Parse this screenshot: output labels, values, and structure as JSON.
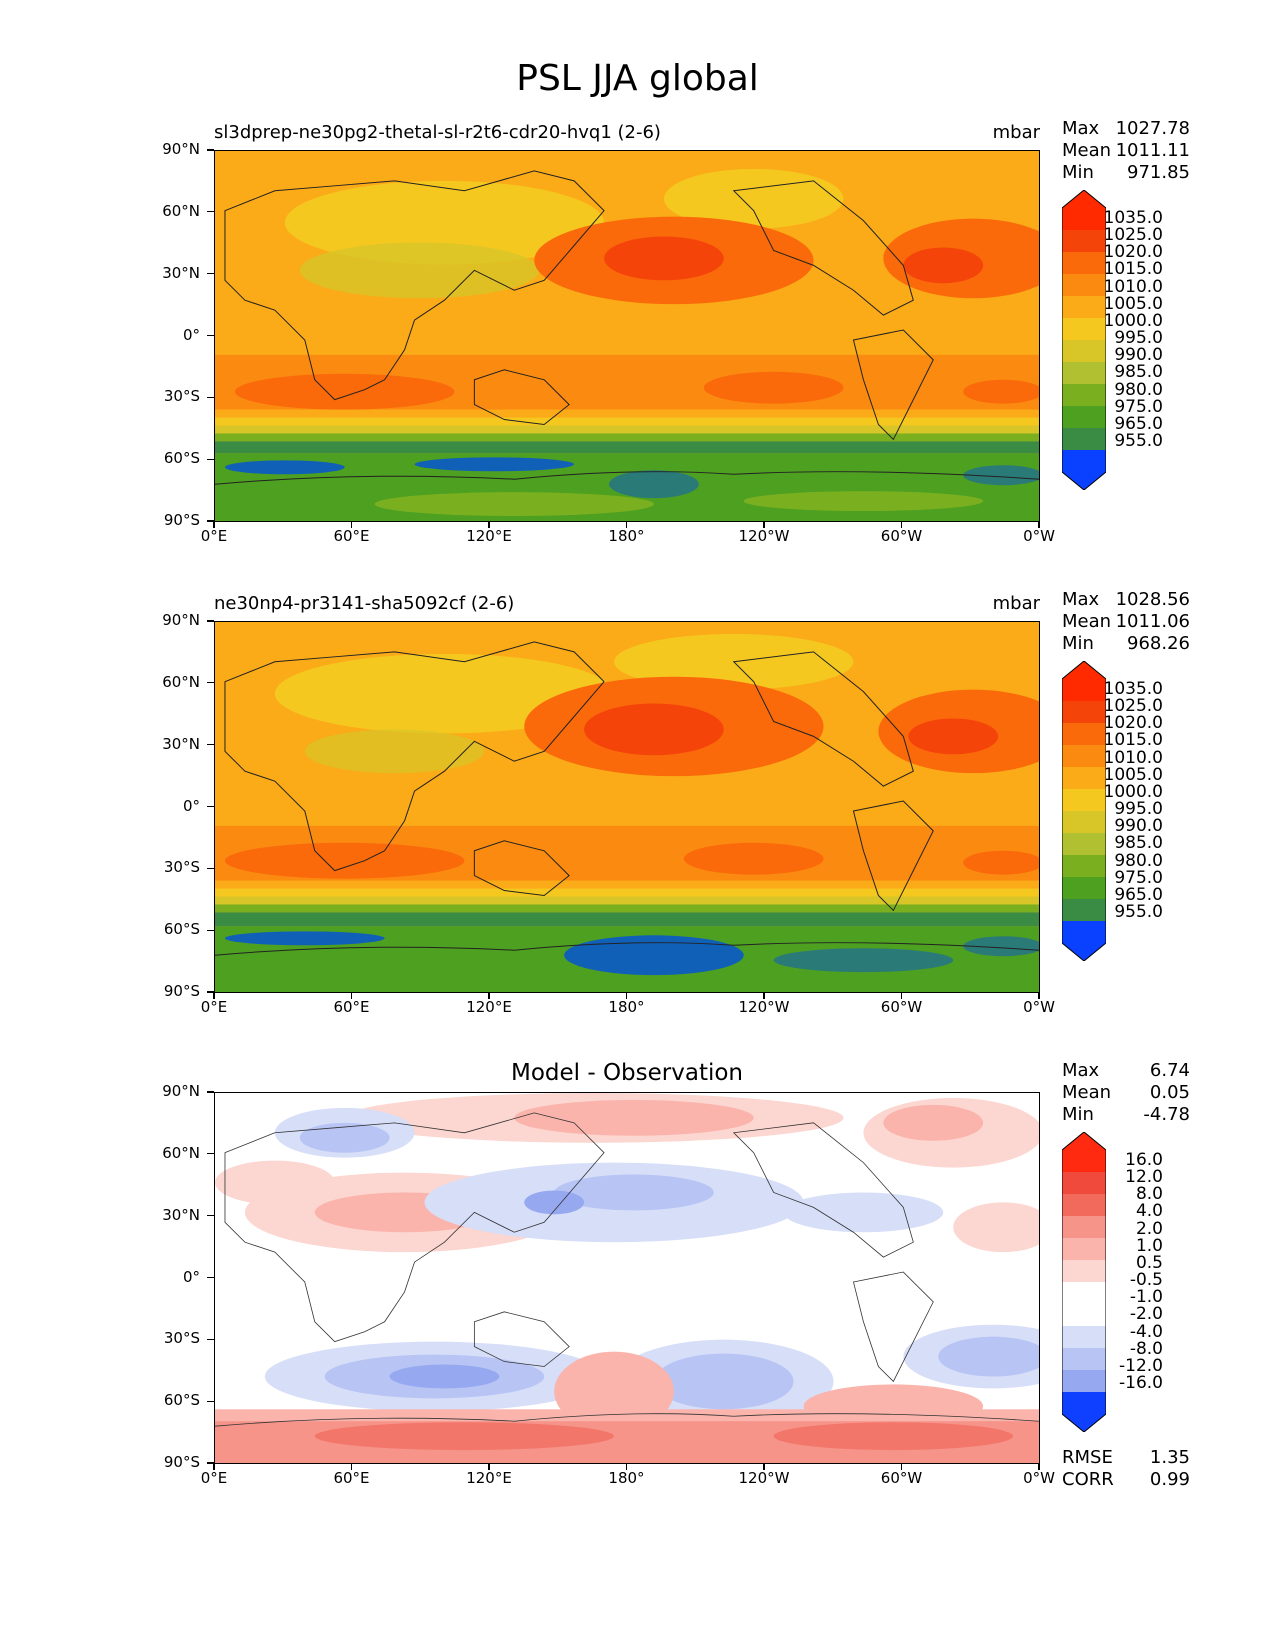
{
  "title": "PSL JJA global",
  "lat_labels": [
    "90°N",
    "60°N",
    "30°N",
    "0°",
    "30°S",
    "60°S",
    "90°S"
  ],
  "lon_labels": [
    "0°E",
    "60°E",
    "120°E",
    "180°",
    "120°W",
    "60°W",
    "0°W"
  ],
  "panels": [
    {
      "name": "test",
      "run": "sl3dprep-ne30pg2-thetal-sl-r2t6-cdr20-hvq1 (2-6)",
      "units": "mbar",
      "stats": {
        "max_label": "Max",
        "max": "1027.78",
        "mean_label": "Mean",
        "mean": "1011.11",
        "min_label": "Min",
        "min": "971.85"
      },
      "colorbar": [
        "1035.0",
        "1025.0",
        "1020.0",
        "1015.0",
        "1010.0",
        "1005.0",
        "1000.0",
        "995.0",
        "990.0",
        "985.0",
        "980.0",
        "975.0",
        "965.0",
        "955.0"
      ]
    },
    {
      "name": "reference",
      "run": "ne30np4-pr3141-sha5092cf (2-6)",
      "units": "mbar",
      "stats": {
        "max_label": "Max",
        "max": "1028.56",
        "mean_label": "Mean",
        "mean": "1011.06",
        "min_label": "Min",
        "min": "968.26"
      },
      "colorbar": [
        "1035.0",
        "1025.0",
        "1020.0",
        "1015.0",
        "1010.0",
        "1005.0",
        "1000.0",
        "995.0",
        "990.0",
        "985.0",
        "980.0",
        "975.0",
        "965.0",
        "955.0"
      ]
    },
    {
      "name": "difference",
      "title": "Model - Observation",
      "stats": {
        "max_label": "Max",
        "max": "6.74",
        "mean_label": "Mean",
        "mean": "0.05",
        "min_label": "Min",
        "min": "-4.78"
      },
      "colorbar": [
        "16.0",
        "12.0",
        "8.0",
        "4.0",
        "2.0",
        "1.0",
        "0.5",
        "-0.5",
        "-1.0",
        "-2.0",
        "-4.0",
        "-8.0",
        "-12.0",
        "-16.0"
      ],
      "metrics": {
        "rmse_label": "RMSE",
        "rmse": "1.35",
        "corr_label": "CORR",
        "corr": "0.99"
      }
    }
  ],
  "colors": {
    "psl_scale": [
      "#ff2a00",
      "#f5440a",
      "#fa6a0a",
      "#fb8a10",
      "#fbaa18",
      "#f5c820",
      "#d8c628",
      "#b0c030",
      "#7ab020",
      "#4ea020",
      "#3a8c44",
      "#2a7a78",
      "#1060b8",
      "#0a40ff"
    ],
    "diff_scale": [
      "#ff2a10",
      "#f04a3c",
      "#f26a5c",
      "#f6948a",
      "#fab4ac",
      "#fcd6d0",
      "#ffffff",
      "#ffffff",
      "#d6def8",
      "#b8c4f4",
      "#96a8f0",
      "#7a8cec",
      "#4a6cf2",
      "#1040ff"
    ]
  }
}
